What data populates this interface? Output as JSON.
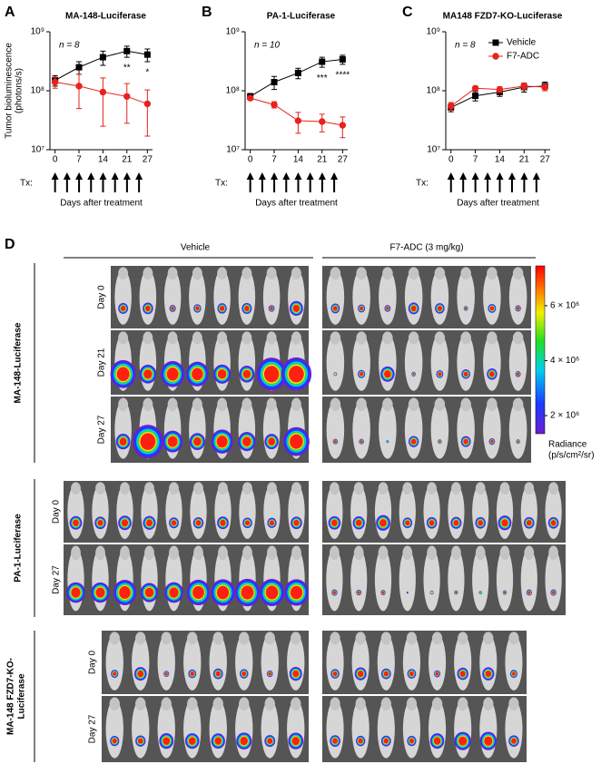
{
  "chart_data": [
    {
      "type": "line",
      "panel": "A",
      "title": "MA-148-Luciferase",
      "y_label": [
        "Tumor bioluminescence",
        "(photons/s)"
      ],
      "x_label": "Days after treatment",
      "tx_label": "Tx:",
      "n_label": "n = 8",
      "log_y": true,
      "xlim": [
        -1.5,
        28.5
      ],
      "ylim": [
        10000000,
        1000000000
      ],
      "xticks": [
        0,
        7,
        14,
        21,
        27
      ],
      "yticks": [
        {
          "value": 10000000,
          "label": "10⁷"
        },
        {
          "value": 100000000,
          "label": "10⁸"
        },
        {
          "value": 1000000000,
          "label": "10⁹"
        }
      ],
      "x": [
        0,
        7,
        14,
        21,
        27
      ],
      "series": [
        {
          "color": "#000000",
          "marker": "square",
          "values": [
            150000000,
            250000000,
            370000000,
            470000000,
            410000000
          ],
          "errors": [
            30000000,
            60000000,
            100000000,
            100000000,
            100000000
          ]
        },
        {
          "color": "#e8221c",
          "marker": "circle",
          "values": [
            140000000,
            120000000,
            95000000,
            80000000,
            60000000
          ],
          "errors": [
            30000000,
            70000000,
            70000000,
            52000000,
            43000000
          ]
        }
      ],
      "annotations": [
        {
          "text": "**",
          "x": 21
        },
        {
          "text": "*",
          "x": 27
        }
      ]
    },
    {
      "type": "line",
      "panel": "B",
      "title": "PA-1-Luciferase",
      "x_label": "Days after treatment",
      "tx_label": "Tx:",
      "n_label": "n = 10",
      "log_y": true,
      "xlim": [
        -1.5,
        28.5
      ],
      "ylim": [
        10000000,
        1000000000
      ],
      "xticks": [
        0,
        7,
        14,
        21,
        27
      ],
      "yticks": [
        {
          "value": 10000000,
          "label": "10⁷"
        },
        {
          "value": 100000000,
          "label": "10⁸"
        },
        {
          "value": 1000000000,
          "label": "10⁹"
        }
      ],
      "x": [
        0,
        7,
        14,
        21,
        27
      ],
      "series": [
        {
          "color": "#000000",
          "marker": "square",
          "values": [
            80000000,
            140000000,
            200000000,
            310000000,
            340000000
          ],
          "errors": [
            10000000,
            35000000,
            40000000,
            60000000,
            60000000
          ]
        },
        {
          "color": "#e8221c",
          "marker": "circle",
          "values": [
            75000000,
            58000000,
            31000000,
            30000000,
            26000000
          ],
          "errors": [
            5000000,
            7000000,
            12000000,
            10000000,
            10000000
          ]
        }
      ],
      "annotations": [
        {
          "text": "***",
          "x": 21
        },
        {
          "text": "****",
          "x": 27
        }
      ]
    },
    {
      "type": "line",
      "panel": "C",
      "title": "MA148 FZD7-KO-Luciferase",
      "x_label": "Days after treatment",
      "tx_label": "Tx:",
      "n_label": "n = 8",
      "log_y": true,
      "legend": "upper right",
      "xlim": [
        -1.5,
        28.5
      ],
      "ylim": [
        10000000,
        1000000000
      ],
      "xticks": [
        0,
        7,
        14,
        21,
        27
      ],
      "yticks": [
        {
          "value": 10000000,
          "label": "10⁷"
        },
        {
          "value": 100000000,
          "label": "10⁸"
        },
        {
          "value": 1000000000,
          "label": "10⁹"
        }
      ],
      "x": [
        0,
        7,
        14,
        21,
        27
      ],
      "series": [
        {
          "name": "Vehicle",
          "color": "#000000",
          "marker": "square",
          "values": [
            52000000,
            82000000,
            95000000,
            115000000,
            120000000
          ],
          "errors": [
            8000000,
            15000000,
            15000000,
            20000000,
            20000000
          ]
        },
        {
          "name": "F7-ADC",
          "color": "#e8221c",
          "marker": "circle",
          "values": [
            55000000,
            110000000,
            105000000,
            120000000,
            115000000
          ],
          "errors": [
            8000000,
            10000000,
            12000000,
            15000000,
            15000000
          ]
        }
      ],
      "annotations": []
    }
  ],
  "panel_d": {
    "label": "D",
    "columns": [
      "Vehicle",
      "F7-ADC (3 mg/kg)"
    ],
    "rows": [
      {
        "name": [
          "MA-148-Luciferase"
        ],
        "days": [
          "Day 0",
          "Day 21",
          "Day 27"
        ]
      },
      {
        "name": [
          "PA-1-Luciferase"
        ],
        "days": [
          "Day 0",
          "Day 27"
        ]
      },
      {
        "name": [
          "MA-148 FZD7-KO-",
          "Luciferase"
        ],
        "days": [
          "Day 0",
          "Day 27"
        ]
      }
    ],
    "colorbar": {
      "clim": [
        1340000,
        7450000
      ],
      "title": [
        "Radiance",
        "(p/s/cm²/sr)"
      ],
      "ticks": [
        {
          "value": 2000000,
          "label": "2 × 10⁶"
        },
        {
          "value": 4000000,
          "label": "4 × 10⁶"
        },
        {
          "value": 6000000,
          "label": "6 × 10⁶"
        }
      ]
    }
  }
}
